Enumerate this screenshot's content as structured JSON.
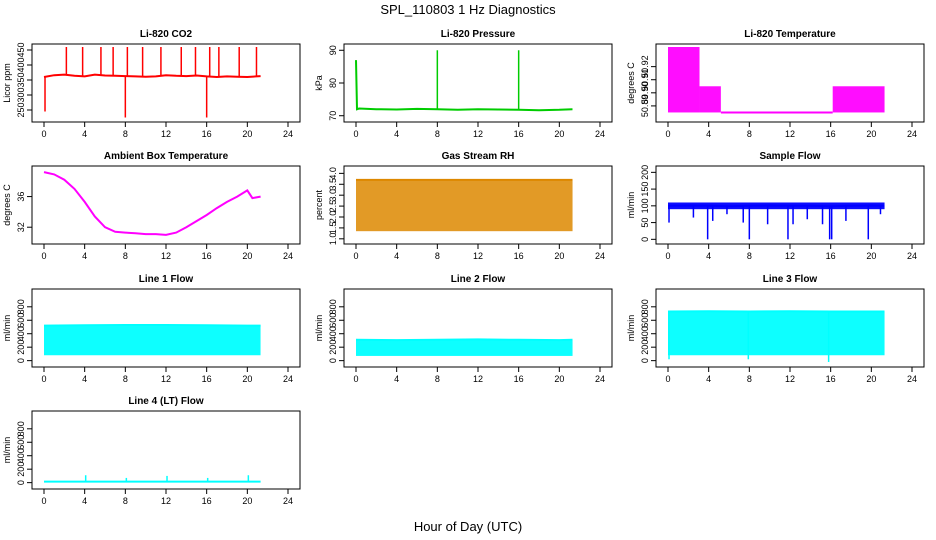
{
  "figure": {
    "title": "SPL_110803  1 Hz Diagnostics",
    "xlabel": "Hour of Day (UTC)"
  },
  "chart_data": [
    {
      "id": "co2",
      "type": "line",
      "title": "Li-820 CO2",
      "ylabel": "Licor ppm",
      "color": "#ff0000",
      "xlim": [
        0,
        24
      ],
      "ylim": [
        220,
        460
      ],
      "xticks": [
        "0",
        "4",
        "8",
        "12",
        "16",
        "20",
        "24"
      ],
      "yticks": [
        {
          "v": 250,
          "label": "250"
        },
        {
          "v": 300,
          "label": "300"
        },
        {
          "v": 350,
          "label": "350"
        },
        {
          "v": 400,
          "label": "400"
        },
        {
          "v": 450,
          "label": "450"
        }
      ],
      "x": [
        0,
        1,
        2,
        3,
        4,
        5,
        6,
        7,
        8,
        9,
        10,
        11,
        12,
        13,
        14,
        15,
        16,
        17,
        18,
        19,
        20,
        21.3
      ],
      "y": [
        360,
        366,
        368,
        364,
        362,
        368,
        365,
        364,
        363,
        362,
        361,
        362,
        366,
        364,
        363,
        365,
        362,
        360,
        362,
        361,
        360,
        363
      ],
      "spikes": [
        [
          0.1,
          245
        ],
        [
          2.2,
          460
        ],
        [
          3.8,
          460
        ],
        [
          5.6,
          460
        ],
        [
          6.8,
          460
        ],
        [
          8.0,
          225
        ],
        [
          8.2,
          460
        ],
        [
          9.7,
          460
        ],
        [
          11.5,
          460
        ],
        [
          13.5,
          460
        ],
        [
          14.9,
          460
        ],
        [
          16.0,
          225
        ],
        [
          16.3,
          460
        ],
        [
          17.2,
          460
        ],
        [
          19.2,
          460
        ],
        [
          20.9,
          460
        ]
      ]
    },
    {
      "id": "pressure",
      "type": "line",
      "title": "Li-820 Pressure",
      "ylabel": "kPa",
      "color": "#00cc00",
      "xlim": [
        0,
        24
      ],
      "ylim": [
        69,
        91
      ],
      "xticks": [
        "0",
        "4",
        "8",
        "12",
        "16",
        "20",
        "24"
      ],
      "yticks": [
        {
          "v": 70,
          "label": "70"
        },
        {
          "v": 80,
          "label": "80"
        },
        {
          "v": 90,
          "label": "90"
        }
      ],
      "x": [
        0,
        0.1,
        0.3,
        2,
        4,
        6,
        8,
        10,
        12,
        14,
        16,
        18,
        20,
        21.3
      ],
      "y": [
        87,
        72,
        72.2,
        72,
        71.9,
        72.1,
        72,
        71.8,
        72,
        71.9,
        71.8,
        71.7,
        71.8,
        72
      ],
      "spikes": [
        [
          0.1,
          87
        ],
        [
          8.0,
          90
        ],
        [
          16.0,
          90
        ]
      ]
    },
    {
      "id": "temperature",
      "type": "line",
      "title": "Li-820 Temperature",
      "ylabel": "degrees C",
      "color": "#ff00ff",
      "xlim": [
        0,
        24
      ],
      "ylim": [
        50.88,
        50.935
      ],
      "xticks": [
        "0",
        "4",
        "8",
        "12",
        "16",
        "20",
        "24"
      ],
      "yticks": [
        {
          "v": 50.89,
          "label": "50.89"
        },
        {
          "v": 50.9,
          "label": "50.90"
        },
        {
          "v": 50.91,
          "label": "50.91"
        },
        {
          "v": 50.92,
          "label": "50.92"
        }
      ],
      "bands": [
        [
          0,
          3.1,
          50.885,
          50.935
        ],
        [
          3.1,
          5.2,
          50.885,
          50.905
        ],
        [
          16.2,
          21.3,
          50.885,
          50.905
        ]
      ],
      "x": [
        5.2,
        16.2
      ],
      "y": [
        50.885,
        50.885
      ]
    },
    {
      "id": "ambient",
      "type": "line",
      "title": "Ambient Box Temperature",
      "ylabel": "degrees C",
      "color": "#ff00ff",
      "xlim": [
        0,
        24
      ],
      "ylim": [
        30.2,
        39.6
      ],
      "xticks": [
        "0",
        "4",
        "8",
        "12",
        "16",
        "20",
        "24"
      ],
      "yticks": [
        {
          "v": 32,
          "label": "32"
        },
        {
          "v": 36,
          "label": "36"
        }
      ],
      "x": [
        0,
        1,
        2,
        3,
        4,
        5,
        6,
        7,
        8,
        9,
        10,
        11,
        12,
        13,
        14,
        15,
        16,
        17,
        18,
        19,
        20,
        20.5,
        21.3
      ],
      "y": [
        39.2,
        38.9,
        38.2,
        37.0,
        35.3,
        33.4,
        32.0,
        31.4,
        31.3,
        31.2,
        31.1,
        31.1,
        31.0,
        31.3,
        32.0,
        32.8,
        33.6,
        34.5,
        35.3,
        36.0,
        36.8,
        35.8,
        36.0
      ]
    },
    {
      "id": "rh",
      "type": "line",
      "title": "Gas Stream RH",
      "ylabel": "percent",
      "color": "#dd8800",
      "xlim": [
        0,
        24
      ],
      "ylim": [
        0.9,
        4.2
      ],
      "xticks": [
        "0",
        "4",
        "8",
        "12",
        "16",
        "20",
        "24"
      ],
      "yticks": [
        {
          "v": 1.0,
          "label": "1.0"
        },
        {
          "v": 1.5,
          "label": "1.5"
        },
        {
          "v": 2.0,
          "label": "2.0"
        },
        {
          "v": 2.5,
          "label": "2.5"
        },
        {
          "v": 3.0,
          "label": "3.0"
        },
        {
          "v": 3.5,
          "label": "3.5"
        },
        {
          "v": 4.0,
          "label": "4.0"
        }
      ],
      "bands": [
        [
          0,
          21.3,
          1.35,
          3.7
        ]
      ],
      "x": [
        0,
        2,
        4,
        6,
        8,
        10,
        12,
        14,
        16,
        18,
        20,
        21.3
      ],
      "y": [
        3.7,
        3.7,
        3.7,
        3.7,
        3.7,
        3.7,
        3.7,
        3.7,
        3.7,
        3.7,
        3.7,
        3.7
      ]
    },
    {
      "id": "sample",
      "type": "line",
      "title": "Sample Flow",
      "ylabel": "ml/min",
      "color": "#0000ff",
      "xlim": [
        0,
        24
      ],
      "ylim": [
        -5,
        210
      ],
      "xticks": [
        "0",
        "4",
        "8",
        "12",
        "16",
        "20",
        "24"
      ],
      "yticks": [
        {
          "v": 0,
          "label": "0"
        },
        {
          "v": 50,
          "label": "50"
        },
        {
          "v": 100,
          "label": "100"
        },
        {
          "v": 150,
          "label": "150"
        },
        {
          "v": 200,
          "label": "200"
        }
      ],
      "bands": [
        [
          0,
          21.3,
          90,
          110
        ]
      ],
      "x": [
        0,
        2,
        4,
        6,
        8,
        10,
        12,
        14,
        16,
        18,
        20,
        21.3
      ],
      "y": [
        100,
        101,
        100,
        99,
        100,
        101,
        100,
        100,
        99,
        100,
        101,
        100
      ],
      "spikes": [
        [
          0.1,
          50
        ],
        [
          2.5,
          65
        ],
        [
          3.9,
          0
        ],
        [
          4.4,
          55
        ],
        [
          5.8,
          75
        ],
        [
          7.4,
          50
        ],
        [
          8.0,
          0
        ],
        [
          9.8,
          45
        ],
        [
          11.8,
          0
        ],
        [
          12.3,
          45
        ],
        [
          13.7,
          60
        ],
        [
          15.2,
          45
        ],
        [
          15.9,
          0
        ],
        [
          16.1,
          0
        ],
        [
          17.5,
          55
        ],
        [
          19.7,
          0
        ],
        [
          20.9,
          75
        ]
      ]
    },
    {
      "id": "line1",
      "type": "line",
      "title": "Line 1 Flow",
      "ylabel": "ml/min",
      "color": "#00ffff",
      "xlim": [
        0,
        24
      ],
      "ylim": [
        -50,
        1020
      ],
      "xticks": [
        "0",
        "4",
        "8",
        "12",
        "16",
        "20",
        "24"
      ],
      "yticks": [
        {
          "v": 0,
          "label": "0"
        },
        {
          "v": 200,
          "label": "200"
        },
        {
          "v": 400,
          "label": "400"
        },
        {
          "v": 600,
          "label": "600"
        },
        {
          "v": 800,
          "label": "800"
        }
      ],
      "bands": [
        [
          0,
          21.3,
          80,
          520
        ]
      ],
      "x": [
        0,
        4,
        8,
        12,
        16,
        20,
        21.3
      ],
      "y": [
        520,
        525,
        530,
        530,
        525,
        520,
        520
      ]
    },
    {
      "id": "line2",
      "type": "line",
      "title": "Line 2 Flow",
      "ylabel": "ml/min",
      "color": "#00ffff",
      "xlim": [
        0,
        24
      ],
      "ylim": [
        -50,
        1020
      ],
      "xticks": [
        "0",
        "4",
        "8",
        "12",
        "16",
        "20",
        "24"
      ],
      "yticks": [
        {
          "v": 0,
          "label": "0"
        },
        {
          "v": 200,
          "label": "200"
        },
        {
          "v": 400,
          "label": "400"
        },
        {
          "v": 600,
          "label": "600"
        },
        {
          "v": 800,
          "label": "800"
        }
      ],
      "bands": [
        [
          0,
          21.3,
          70,
          310
        ]
      ],
      "x": [
        0,
        4,
        8,
        12,
        16,
        20,
        21.3
      ],
      "y": [
        310,
        305,
        310,
        315,
        310,
        305,
        310
      ]
    },
    {
      "id": "line3",
      "type": "line",
      "title": "Line 3 Flow",
      "ylabel": "ml/min",
      "color": "#00ffff",
      "xlim": [
        0,
        24
      ],
      "ylim": [
        -50,
        1020
      ],
      "xticks": [
        "0",
        "4",
        "8",
        "12",
        "16",
        "20",
        "24"
      ],
      "yticks": [
        {
          "v": 0,
          "label": "0"
        },
        {
          "v": 200,
          "label": "200"
        },
        {
          "v": 400,
          "label": "400"
        },
        {
          "v": 600,
          "label": "600"
        },
        {
          "v": 800,
          "label": "800"
        }
      ],
      "bands": [
        [
          0,
          21.3,
          80,
          730
        ]
      ],
      "x": [
        0,
        4,
        8,
        12,
        16,
        20,
        21.3
      ],
      "y": [
        730,
        735,
        730,
        735,
        730,
        730,
        730
      ],
      "spikes": [
        [
          0.1,
          20
        ],
        [
          7.9,
          20
        ],
        [
          15.8,
          -20
        ]
      ]
    },
    {
      "id": "line4",
      "type": "line",
      "title": "Line 4 (LT) Flow",
      "ylabel": "ml/min",
      "color": "#00ffff",
      "xlim": [
        0,
        24
      ],
      "ylim": [
        -50,
        1020
      ],
      "xticks": [
        "0",
        "4",
        "8",
        "12",
        "16",
        "20",
        "24"
      ],
      "yticks": [
        {
          "v": 0,
          "label": "0"
        },
        {
          "v": 200,
          "label": "200"
        },
        {
          "v": 400,
          "label": "400"
        },
        {
          "v": 600,
          "label": "600"
        },
        {
          "v": 800,
          "label": "800"
        }
      ],
      "x": [
        0,
        4,
        8,
        12,
        16,
        20,
        21.3
      ],
      "y": [
        15,
        15,
        15,
        15,
        15,
        15,
        15
      ],
      "spikes": [
        [
          4.1,
          110
        ],
        [
          8.1,
          70
        ],
        [
          12.1,
          100
        ],
        [
          16.1,
          70
        ],
        [
          20.1,
          110
        ]
      ]
    }
  ]
}
